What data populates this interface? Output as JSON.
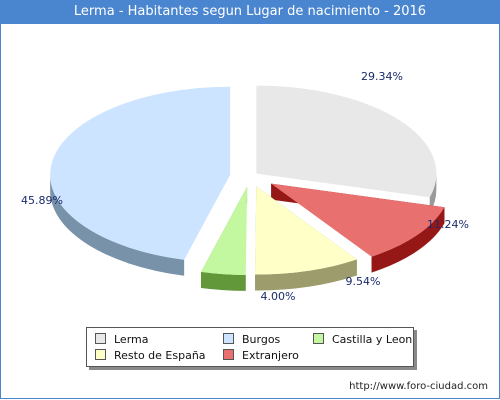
{
  "header": {
    "title": "Lerma - Habitantes segun Lugar de nacimiento - 2016"
  },
  "chart_data": {
    "type": "pie",
    "title": "Lerma - Habitantes segun Lugar de nacimiento - 2016",
    "slices": [
      {
        "label": "Lerma",
        "value": 29.34,
        "value_label": "29.34%",
        "color": "#e8e8e8",
        "side_color": "#9a9a9a"
      },
      {
        "label": "Extranjero",
        "value": 11.24,
        "value_label": "11.24%",
        "color": "#e8706e",
        "side_color": "#961816"
      },
      {
        "label": "Resto de España",
        "value": 9.54,
        "value_label": "9.54%",
        "color": "#ffffc8",
        "side_color": "#9c9c6c"
      },
      {
        "label": "Castilla y Leon",
        "value": 4.0,
        "value_label": "4.00%",
        "color": "#c4f8a0",
        "side_color": "#62983a"
      },
      {
        "label": "Burgos",
        "value": 45.89,
        "value_label": "45.89%",
        "color": "#cce4ff",
        "side_color": "#7892aa"
      }
    ],
    "legend": {
      "placement": "bottom",
      "items": [
        "Lerma",
        "Burgos",
        "Castilla y Leon",
        "Resto de España",
        "Extranjero"
      ]
    }
  },
  "footer": {
    "source": "http://www.foro-ciudad.com"
  }
}
